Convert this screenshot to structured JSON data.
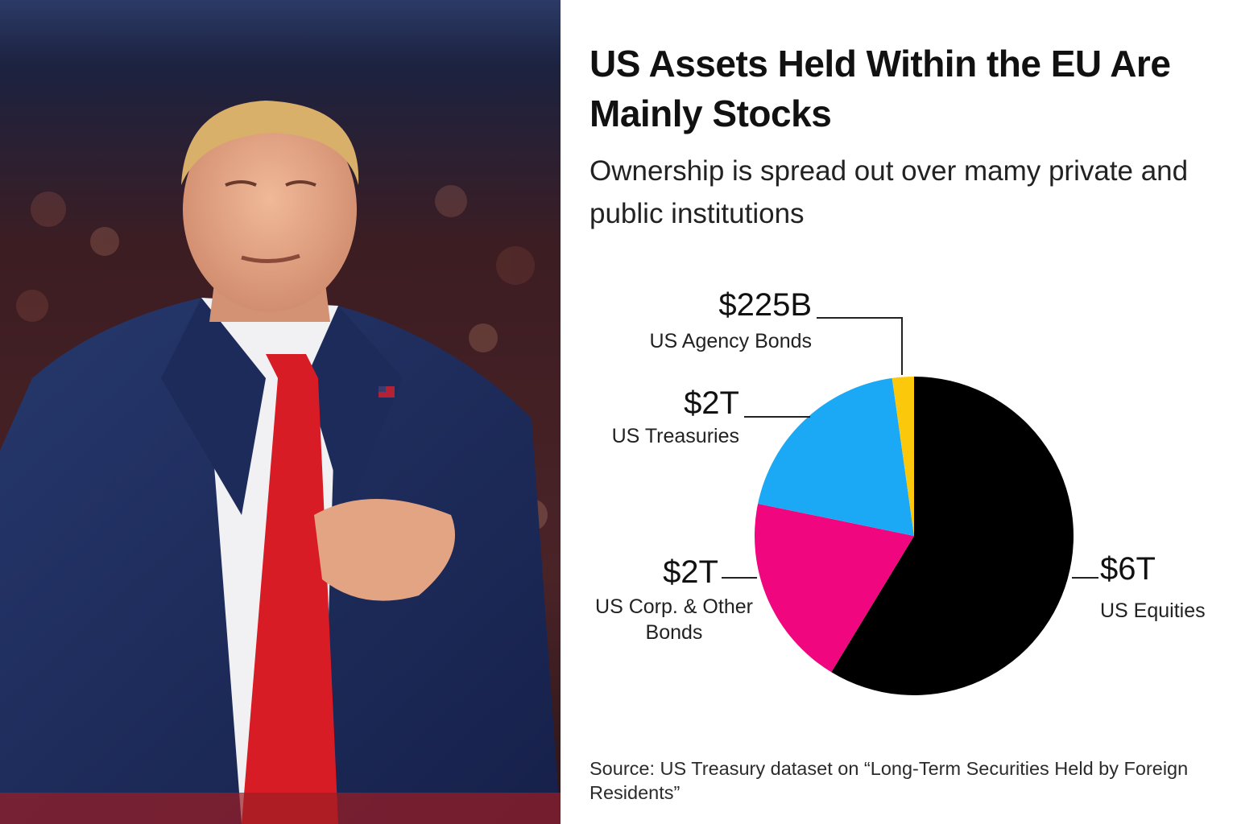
{
  "chart_data": {
    "type": "pie",
    "title": "US Assets Held Within the EU Are Mainly Stocks",
    "subtitle": "Ownership is spread out over mamy private and public institutions",
    "source": "Source: US Treasury dataset on “Long-Term Securities Held by Foreign Residents”",
    "slices": [
      {
        "key": "equities",
        "value_label": "$6T",
        "label_lines": [
          "US Equities"
        ],
        "value": 6,
        "color": "#000000"
      },
      {
        "key": "corp",
        "value_label": "$2T",
        "label_lines": [
          "US Corp. & Other",
          "Bonds"
        ],
        "value": 2,
        "color": "#f0077f"
      },
      {
        "key": "treasuries",
        "value_label": "$2T",
        "label_lines": [
          "US Treasuries"
        ],
        "value": 2,
        "color": "#1ba9f5"
      },
      {
        "key": "agency",
        "value_label": "$225B",
        "label_lines": [
          "US Agency Bonds"
        ],
        "value": 0.225,
        "color": "#fcc80b"
      }
    ]
  },
  "photo": {
    "description_icon": "person-applauding-photo",
    "colors": {
      "suit": "#1f2c57",
      "tie": "#d81c25",
      "hair": "#d9b06a",
      "skin": "#e7a98a",
      "background": "#3a1e22"
    }
  }
}
